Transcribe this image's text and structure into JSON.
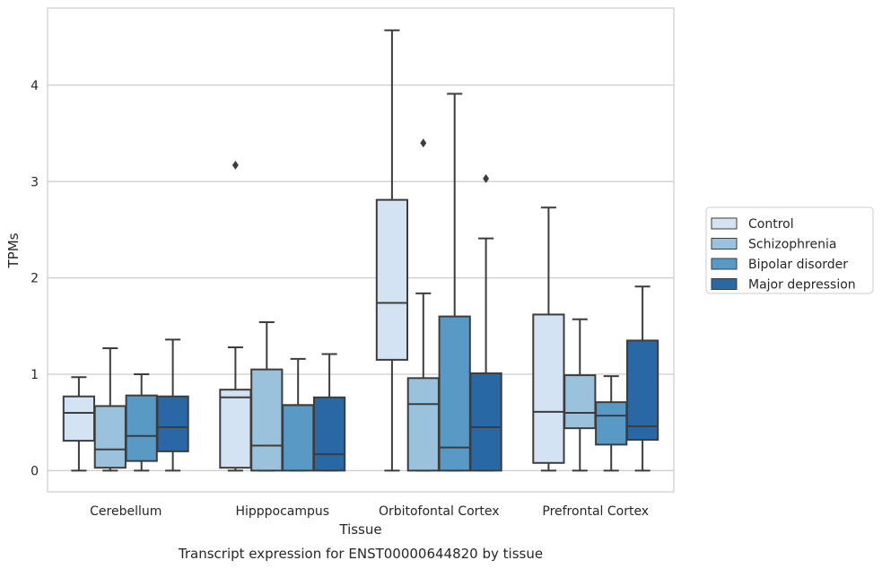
{
  "chart_data": {
    "type": "box",
    "title": "",
    "caption": "Transcript expression for ENST00000644820 by tissue",
    "xlabel": "Tissue",
    "ylabel": "TPMs",
    "ylim": [
      -0.22,
      4.8
    ],
    "yticks": [
      0,
      1,
      2,
      3,
      4
    ],
    "grid": "horizontal",
    "legend_position": "right",
    "categories": [
      "Cerebellum",
      "Hipppocampus",
      "Orbitofontal Cortex",
      "Prefrontal Cortex"
    ],
    "series": [
      {
        "name": "Control",
        "color": "#d3e3f3",
        "boxes": [
          {
            "whislo": 0.0,
            "q1": 0.31,
            "med": 0.6,
            "q3": 0.77,
            "whishi": 0.97,
            "fliers": []
          },
          {
            "whislo": 0.0,
            "q1": 0.03,
            "med": 0.76,
            "q3": 0.84,
            "whishi": 1.28,
            "fliers": [
              3.17
            ]
          },
          {
            "whislo": 0.0,
            "q1": 1.15,
            "med": 1.74,
            "q3": 2.81,
            "whishi": 4.57,
            "fliers": []
          },
          {
            "whislo": 0.0,
            "q1": 0.08,
            "med": 0.61,
            "q3": 1.62,
            "whishi": 2.73,
            "fliers": []
          }
        ]
      },
      {
        "name": "Schizophrenia",
        "color": "#9ac2dc",
        "boxes": [
          {
            "whislo": 0.0,
            "q1": 0.03,
            "med": 0.22,
            "q3": 0.67,
            "whishi": 1.27,
            "fliers": []
          },
          {
            "whislo": 0.0,
            "q1": 0.0,
            "med": 0.26,
            "q3": 1.05,
            "whishi": 1.54,
            "fliers": []
          },
          {
            "whislo": 0.0,
            "q1": 0.0,
            "med": 0.69,
            "q3": 0.96,
            "whishi": 1.84,
            "fliers": [
              3.4
            ]
          },
          {
            "whislo": 0.0,
            "q1": 0.44,
            "med": 0.6,
            "q3": 0.99,
            "whishi": 1.57,
            "fliers": []
          }
        ]
      },
      {
        "name": "Bipolar disorder",
        "color": "#5899c6",
        "boxes": [
          {
            "whislo": 0.0,
            "q1": 0.1,
            "med": 0.36,
            "q3": 0.78,
            "whishi": 1.0,
            "fliers": []
          },
          {
            "whislo": 0.0,
            "q1": 0.0,
            "med": 0.68,
            "q3": 0.68,
            "whishi": 1.16,
            "fliers": []
          },
          {
            "whislo": 0.0,
            "q1": 0.0,
            "med": 0.24,
            "q3": 1.6,
            "whishi": 3.91,
            "fliers": []
          },
          {
            "whislo": 0.0,
            "q1": 0.27,
            "med": 0.57,
            "q3": 0.71,
            "whishi": 0.98,
            "fliers": []
          }
        ]
      },
      {
        "name": "Major depression",
        "color": "#2a67a5",
        "boxes": [
          {
            "whislo": 0.0,
            "q1": 0.2,
            "med": 0.45,
            "q3": 0.77,
            "whishi": 1.36,
            "fliers": []
          },
          {
            "whislo": 0.0,
            "q1": 0.0,
            "med": 0.17,
            "q3": 0.76,
            "whishi": 1.21,
            "fliers": []
          },
          {
            "whislo": 0.0,
            "q1": 0.0,
            "med": 0.45,
            "q3": 1.01,
            "whishi": 2.41,
            "fliers": [
              3.03
            ]
          },
          {
            "whislo": 0.0,
            "q1": 0.32,
            "med": 0.46,
            "q3": 1.35,
            "whishi": 1.91,
            "fliers": []
          }
        ]
      }
    ]
  }
}
